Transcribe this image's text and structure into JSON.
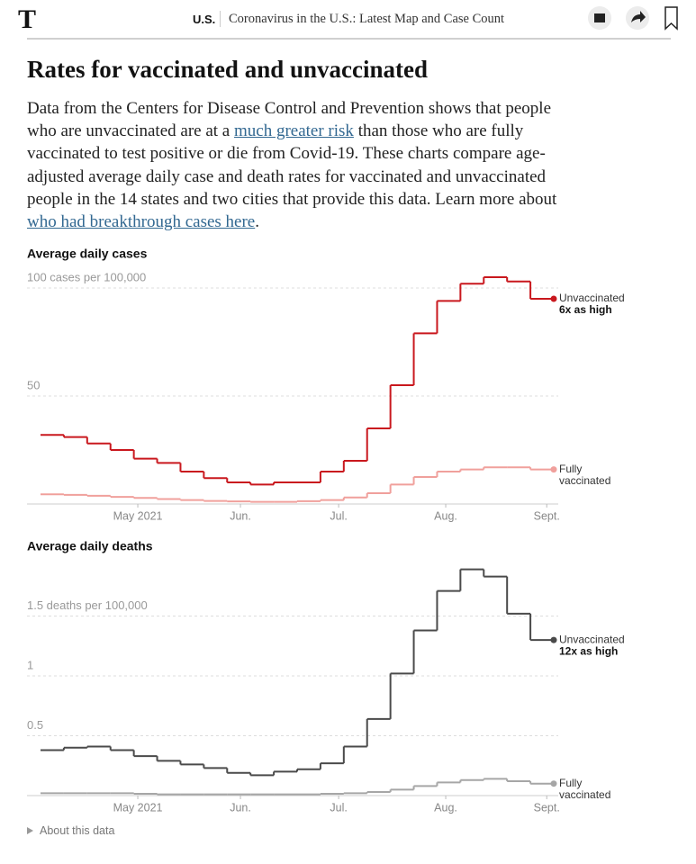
{
  "header": {
    "logo": "T",
    "section": "U.S.",
    "headline": "Coronavirus in the U.S.: Latest Map and Case Count"
  },
  "article": {
    "title": "Rates for vaccinated and unvaccinated",
    "text_1": "Data from the Centers for Disease Control and Prevention shows that people who are unvaccinated are at a ",
    "link_1": "much greater risk",
    "text_2": " than those who are fully vaccinated to test positive or die from Covid-19. These charts compare age-adjusted average daily case and death rates for vaccinated and unvaccinated people in the 14 states and two cities that provide this data. Learn more about ",
    "link_2": "who had breakthrough cases here",
    "text_3": "."
  },
  "chart_data": [
    {
      "type": "step",
      "title": "Average daily cases",
      "x": [
        0,
        1,
        2,
        3,
        4,
        5,
        6,
        7,
        8,
        9,
        10,
        11,
        12,
        13,
        14,
        15,
        16,
        17,
        18,
        19,
        20,
        21
      ],
      "xlim": [
        0,
        22
      ],
      "xticks": [
        {
          "value": 4.17,
          "label": "May 2021"
        },
        {
          "value": 8.57,
          "label": "Jun."
        },
        {
          "value": 12.78,
          "label": "Jul."
        },
        {
          "value": 17.37,
          "label": "Aug."
        },
        {
          "value": 21.7,
          "label": "Sept."
        }
      ],
      "ylim": [
        0,
        106
      ],
      "yticks": [
        50,
        {
          "value": 100,
          "label": "100 cases per 100,000"
        }
      ],
      "grid": true,
      "series": [
        {
          "name": "Unvaccinated",
          "annotation": "6x as high",
          "color": "#c9181e",
          "values": [
            32,
            31,
            28,
            25,
            21,
            19,
            15,
            12,
            10,
            9,
            10,
            10,
            15,
            20,
            35,
            55,
            79,
            94,
            102,
            105,
            103,
            95
          ]
        },
        {
          "name": "Fully vaccinated",
          "color": "#f0a09c",
          "values": [
            4.5,
            4.2,
            3.8,
            3.3,
            2.8,
            2.3,
            1.8,
            1.4,
            1.2,
            1,
            1,
            1.3,
            1.8,
            3,
            5,
            9,
            12.5,
            15,
            16,
            17,
            17,
            16
          ]
        }
      ]
    },
    {
      "type": "step",
      "title": "Average daily deaths",
      "x": [
        0,
        1,
        2,
        3,
        4,
        5,
        6,
        7,
        8,
        9,
        10,
        11,
        12,
        13,
        14,
        15,
        16,
        17,
        18,
        19,
        20,
        21
      ],
      "xlim": [
        0,
        22
      ],
      "xticks": [
        {
          "value": 4.17,
          "label": "May 2021"
        },
        {
          "value": 8.57,
          "label": "Jun."
        },
        {
          "value": 12.78,
          "label": "Jul."
        },
        {
          "value": 17.37,
          "label": "Aug."
        },
        {
          "value": 21.7,
          "label": "Sept."
        }
      ],
      "ylim": [
        0,
        1.9
      ],
      "yticks": [
        0.5,
        1,
        {
          "value": 1.5,
          "label": "1.5 deaths per 100,000"
        }
      ],
      "grid": true,
      "series": [
        {
          "name": "Unvaccinated",
          "annotation": "12x as high",
          "color": "#4a4a4a",
          "values": [
            0.38,
            0.4,
            0.41,
            0.38,
            0.33,
            0.29,
            0.26,
            0.23,
            0.19,
            0.17,
            0.2,
            0.22,
            0.27,
            0.41,
            0.64,
            1.02,
            1.38,
            1.71,
            1.89,
            1.83,
            1.52,
            1.3
          ]
        },
        {
          "name": "Fully vaccinated",
          "color": "#a6a6a6",
          "values": [
            0.02,
            0.02,
            0.02,
            0.02,
            0.015,
            0.01,
            0.01,
            0.01,
            0.01,
            0.01,
            0.01,
            0.01,
            0.015,
            0.02,
            0.03,
            0.05,
            0.08,
            0.11,
            0.13,
            0.14,
            0.12,
            0.1
          ]
        }
      ]
    }
  ],
  "footer": {
    "about": "About this data"
  }
}
